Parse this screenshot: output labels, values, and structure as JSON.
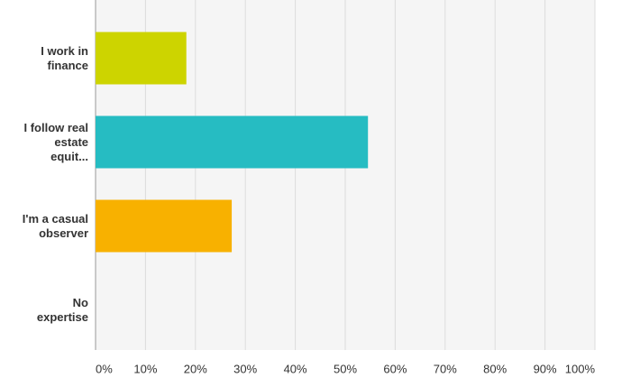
{
  "chart_data": {
    "type": "hbar",
    "categories": [
      "I work in finance",
      "I follow real estate equit...",
      "I'm a casual observer",
      "No expertise"
    ],
    "values": [
      18.18,
      54.55,
      27.27,
      0
    ],
    "colors": [
      "#cdd400",
      "#26bcc2",
      "#f8b100",
      "#7e9fcb"
    ],
    "xlim": [
      0,
      100
    ],
    "xticks": [
      {
        "value": 0,
        "label": "0%"
      },
      {
        "value": 10,
        "label": "10%"
      },
      {
        "value": 20,
        "label": "20%"
      },
      {
        "value": 30,
        "label": "30%"
      },
      {
        "value": 40,
        "label": "40%"
      },
      {
        "value": 50,
        "label": "50%"
      },
      {
        "value": 60,
        "label": "60%"
      },
      {
        "value": 70,
        "label": "70%"
      },
      {
        "value": 80,
        "label": "80%"
      },
      {
        "value": 90,
        "label": "90%"
      },
      {
        "value": 100,
        "label": "100%"
      }
    ],
    "grid": true
  }
}
